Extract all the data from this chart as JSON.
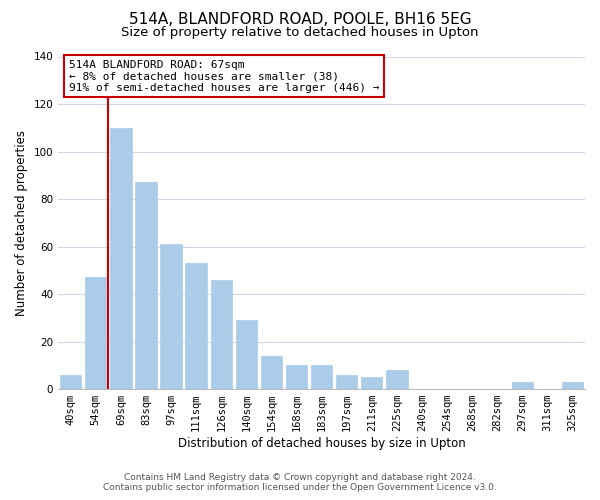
{
  "title": "514A, BLANDFORD ROAD, POOLE, BH16 5EG",
  "subtitle": "Size of property relative to detached houses in Upton",
  "xlabel": "Distribution of detached houses by size in Upton",
  "ylabel": "Number of detached properties",
  "bar_labels": [
    "40sqm",
    "54sqm",
    "69sqm",
    "83sqm",
    "97sqm",
    "111sqm",
    "126sqm",
    "140sqm",
    "154sqm",
    "168sqm",
    "183sqm",
    "197sqm",
    "211sqm",
    "225sqm",
    "240sqm",
    "254sqm",
    "268sqm",
    "282sqm",
    "297sqm",
    "311sqm",
    "325sqm"
  ],
  "bar_values": [
    6,
    47,
    110,
    87,
    61,
    53,
    46,
    29,
    14,
    10,
    10,
    6,
    5,
    8,
    0,
    0,
    0,
    0,
    3,
    0,
    3
  ],
  "bar_color": "#aacce8",
  "highlight_index": 2,
  "highlight_line_color": "#cc0000",
  "ylim": [
    0,
    140
  ],
  "yticks": [
    0,
    20,
    40,
    60,
    80,
    100,
    120,
    140
  ],
  "annotation_title": "514A BLANDFORD ROAD: 67sqm",
  "annotation_line1": "← 8% of detached houses are smaller (38)",
  "annotation_line2": "91% of semi-detached houses are larger (446) →",
  "annotation_box_color": "#ffffff",
  "annotation_box_edge": "#cc0000",
  "footer_line1": "Contains HM Land Registry data © Crown copyright and database right 2024.",
  "footer_line2": "Contains public sector information licensed under the Open Government Licence v3.0.",
  "background_color": "#ffffff",
  "grid_color": "#d0d8e8",
  "title_fontsize": 11,
  "subtitle_fontsize": 9.5,
  "axis_label_fontsize": 8.5,
  "tick_fontsize": 7.5,
  "annotation_fontsize": 8,
  "footer_fontsize": 6.5
}
